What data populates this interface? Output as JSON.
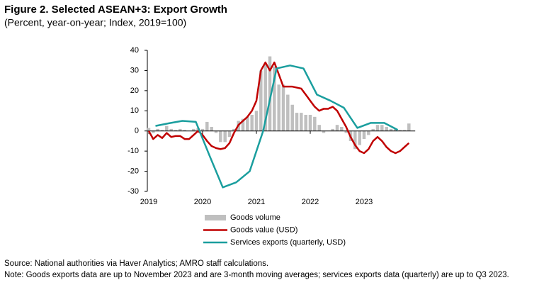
{
  "chart_data": {
    "type": "combo",
    "title": "Figure 2. Selected ASEAN+3: Export Growth",
    "subtitle": "(Percent, year-on-year; Index, 2019=100)",
    "notes": [
      "Source: National authorities via Haver Analytics; AMRO staff calculations.",
      "Note: Goods exports data are up to November 2023 and are 3-month moving averages; services exports data (quarterly) are up to Q3 2023."
    ],
    "x": [
      2019,
      2019.083,
      2019.167,
      2019.25,
      2019.333,
      2019.417,
      2019.5,
      2019.583,
      2019.667,
      2019.75,
      2019.833,
      2019.917,
      2020,
      2020.083,
      2020.167,
      2020.25,
      2020.333,
      2020.417,
      2020.5,
      2020.583,
      2020.667,
      2020.75,
      2020.833,
      2020.917,
      2021,
      2021.083,
      2021.167,
      2021.25,
      2021.333,
      2021.417,
      2021.5,
      2021.583,
      2021.667,
      2021.75,
      2021.833,
      2021.917,
      2022,
      2022.083,
      2022.167,
      2022.25,
      2022.333,
      2022.417,
      2022.5,
      2022.583,
      2022.667,
      2022.75,
      2022.833,
      2022.917,
      2023,
      2023.083,
      2023.167,
      2023.25,
      2023.333,
      2023.417,
      2023.5,
      2023.583,
      2023.667,
      2023.75,
      2023.833
    ],
    "series": [
      {
        "name": "Goods volume",
        "type": "bar",
        "color": "#bfbfbf",
        "values": [
          1.5,
          -1,
          1,
          0.5,
          2.5,
          1,
          0.5,
          1,
          0.5,
          0,
          1,
          1.5,
          1,
          4.5,
          2,
          -1,
          -5.5,
          -5.5,
          -3,
          1,
          5,
          6,
          7,
          8,
          10,
          30,
          33,
          37,
          32,
          23,
          23,
          18,
          13,
          9,
          9,
          8,
          8,
          7,
          3,
          -1,
          0,
          1,
          3,
          2,
          -1,
          -5,
          -9,
          -7,
          -4,
          -2,
          1,
          3,
          3,
          2,
          1,
          1,
          0.5,
          0.5,
          3.7
        ]
      },
      {
        "name": "Goods value (USD)",
        "type": "line",
        "color": "#c00000",
        "values": [
          0,
          -4,
          -2,
          -3.5,
          -1,
          -3,
          -2.5,
          -2.5,
          -4,
          -4,
          -2,
          0,
          -2,
          -5,
          -7.5,
          -8.5,
          -9,
          -8.5,
          -6,
          -1,
          3,
          5,
          7,
          10,
          15,
          30,
          34,
          30,
          34,
          28,
          22,
          22,
          22,
          21.5,
          21,
          18,
          15,
          12,
          10,
          11,
          11,
          12,
          10,
          6,
          2,
          -3,
          -7,
          -10,
          -11,
          -9,
          -5,
          -3,
          -5,
          -8,
          -10,
          -11,
          -10,
          -8,
          -6
        ]
      },
      {
        "name": "Services exports (quarterly, USD)",
        "type": "line",
        "color": "#1a9e9e",
        "x": [
          2019.125,
          2019.375,
          2019.625,
          2019.875,
          2020.125,
          2020.375,
          2020.625,
          2020.875,
          2021.125,
          2021.375,
          2021.625,
          2021.875,
          2022.125,
          2022.375,
          2022.625,
          2022.875,
          2023.125,
          2023.375,
          2023.625
        ],
        "values": [
          2.5,
          3.8,
          5,
          4.5,
          -12,
          -28,
          -25.5,
          -20,
          0,
          31,
          32.5,
          31,
          18,
          15,
          11.5,
          1.5,
          4,
          4,
          0.5
        ]
      }
    ],
    "xlim": [
      2019,
      2023.95
    ],
    "xticks": [
      2019,
      2020,
      2021,
      2022,
      2023
    ],
    "ylim": [
      -30,
      40
    ],
    "yticks": [
      -30,
      -20,
      -10,
      0,
      10,
      20,
      30,
      40
    ],
    "grid": false,
    "legend": "bottom"
  }
}
